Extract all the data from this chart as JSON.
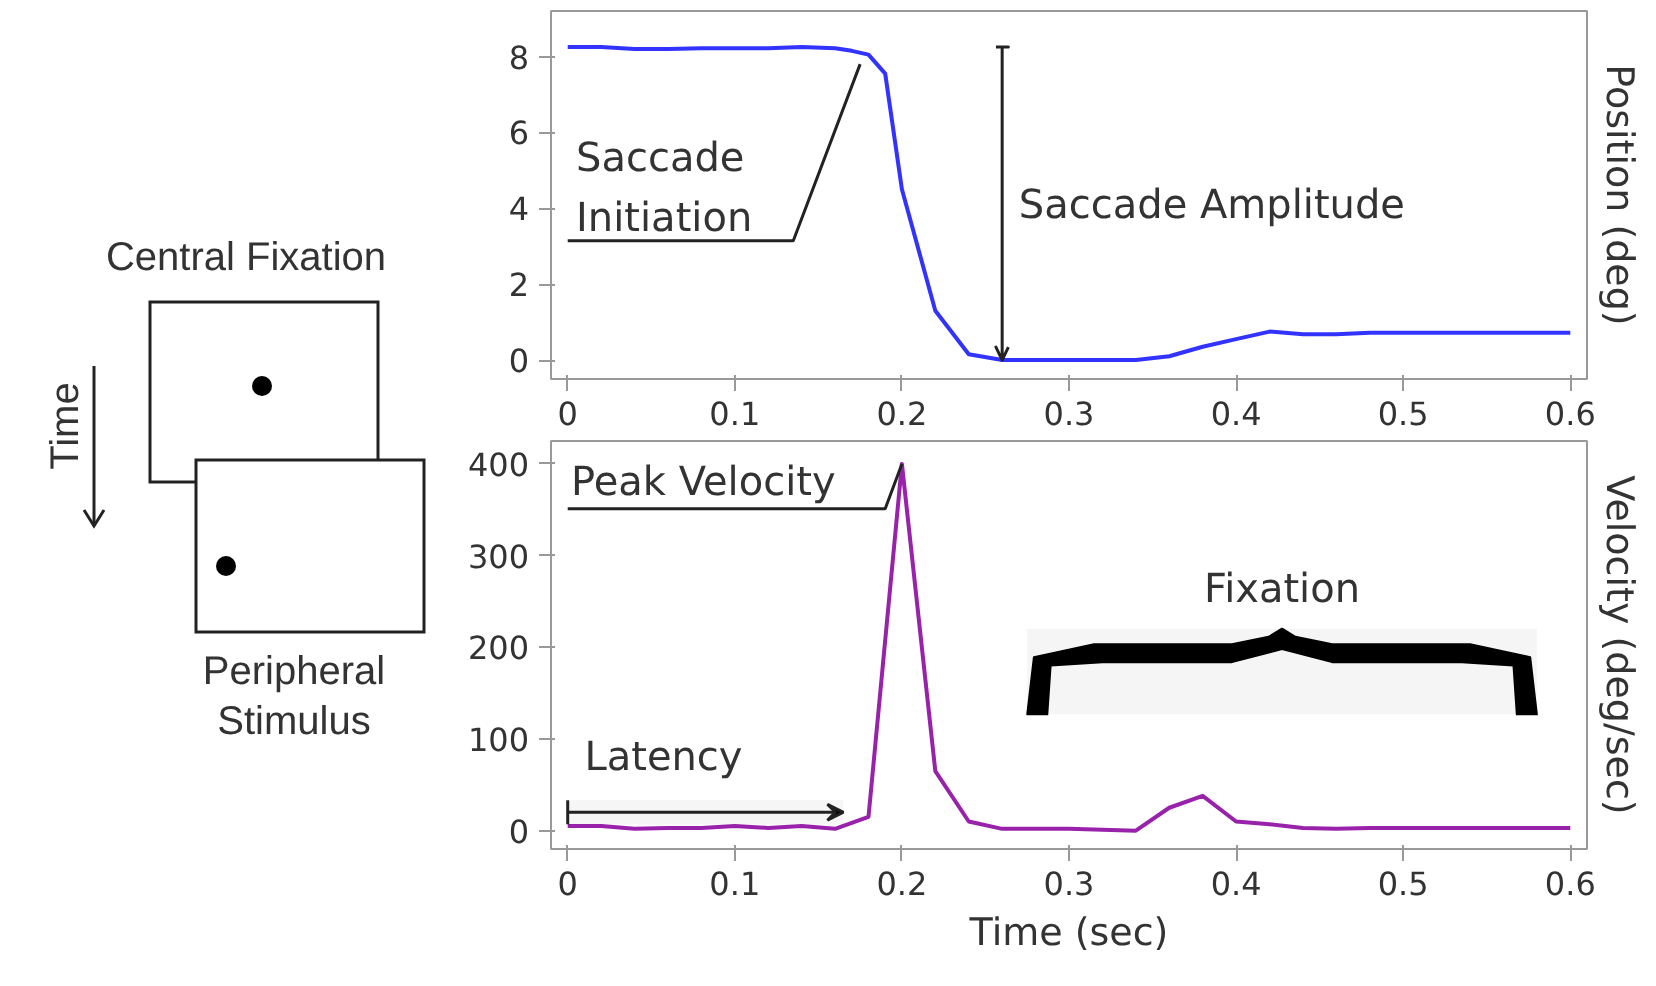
{
  "chart_data": [
    {
      "type": "other",
      "annotations": [
        "Central Fixation",
        "Time",
        "Peripheral\nStimulus"
      ]
    },
    {
      "type": "line",
      "x": [
        0,
        0.02,
        0.04,
        0.06,
        0.08,
        0.1,
        0.12,
        0.14,
        0.16,
        0.17,
        0.18,
        0.19,
        0.2,
        0.22,
        0.24,
        0.26,
        0.28,
        0.3,
        0.32,
        0.34,
        0.36,
        0.38,
        0.4,
        0.42,
        0.44,
        0.46,
        0.48,
        0.5,
        0.52,
        0.54,
        0.56,
        0.58,
        0.6
      ],
      "series": [
        {
          "color": "#3333ff",
          "values": [
            8.25,
            8.25,
            8.2,
            8.2,
            8.22,
            8.22,
            8.22,
            8.25,
            8.22,
            8.15,
            8.05,
            7.55,
            4.5,
            1.3,
            0.15,
            0,
            0,
            0,
            0,
            0,
            0.1,
            0.35,
            0.55,
            0.75,
            0.68,
            0.68,
            0.72,
            0.72,
            0.72,
            0.72,
            0.72,
            0.72,
            0.72
          ]
        }
      ],
      "ylabel": "Position (deg)",
      "xlim": [
        -0.01,
        0.61
      ],
      "ylim": [
        -0.5,
        9.2
      ],
      "xticks": [
        0,
        0.1,
        0.2,
        0.3,
        0.4,
        0.5,
        0.6
      ],
      "yticks": [
        0,
        2,
        4,
        6,
        8
      ],
      "grid": false,
      "marker": "none",
      "line_style": "solid",
      "annotations": [
        {
          "text": "Saccade Initiation",
          "x": 0.175,
          "y": 7.8
        }
      ],
      "ref_lines": [
        {
          "axis": "x",
          "value": 0.26,
          "label": "Saccade Amplitude",
          "color": "#222222"
        }
      ]
    },
    {
      "type": "line",
      "x": [
        0,
        0.02,
        0.04,
        0.06,
        0.08,
        0.1,
        0.12,
        0.14,
        0.16,
        0.18,
        0.2,
        0.22,
        0.24,
        0.26,
        0.28,
        0.3,
        0.32,
        0.34,
        0.36,
        0.38,
        0.4,
        0.42,
        0.44,
        0.46,
        0.48,
        0.5,
        0.52,
        0.54,
        0.56,
        0.58,
        0.6
      ],
      "series": [
        {
          "color": "#9922aa",
          "values": [
            5,
            5,
            2,
            3,
            3,
            5,
            3,
            5,
            2,
            15,
            400,
            65,
            10,
            2,
            2,
            2,
            1,
            0,
            25,
            38,
            10,
            7,
            3,
            2,
            3,
            3,
            3,
            3,
            3,
            3,
            3
          ]
        }
      ],
      "xlabel": "Time (sec)",
      "ylabel": "Velocity (deg/sec)",
      "xlim": [
        -0.01,
        0.61
      ],
      "ylim": [
        -20,
        425
      ],
      "xticks": [
        0,
        0.1,
        0.2,
        0.3,
        0.4,
        0.5,
        0.6
      ],
      "yticks": [
        0,
        100,
        200,
        300,
        400
      ],
      "grid": false,
      "marker": "none",
      "line_style": "solid",
      "annotations": [
        {
          "text": "Peak Velocity",
          "x": 0.2,
          "y": 400
        }
      ],
      "bands": [
        {
          "axis": "x",
          "from": 0,
          "to": 0.165,
          "label": "Latency",
          "color": "#222222"
        },
        {
          "axis": "x",
          "from": 0.275,
          "to": 0.58,
          "label": "Fixation",
          "color": "#000000"
        }
      ]
    }
  ]
}
